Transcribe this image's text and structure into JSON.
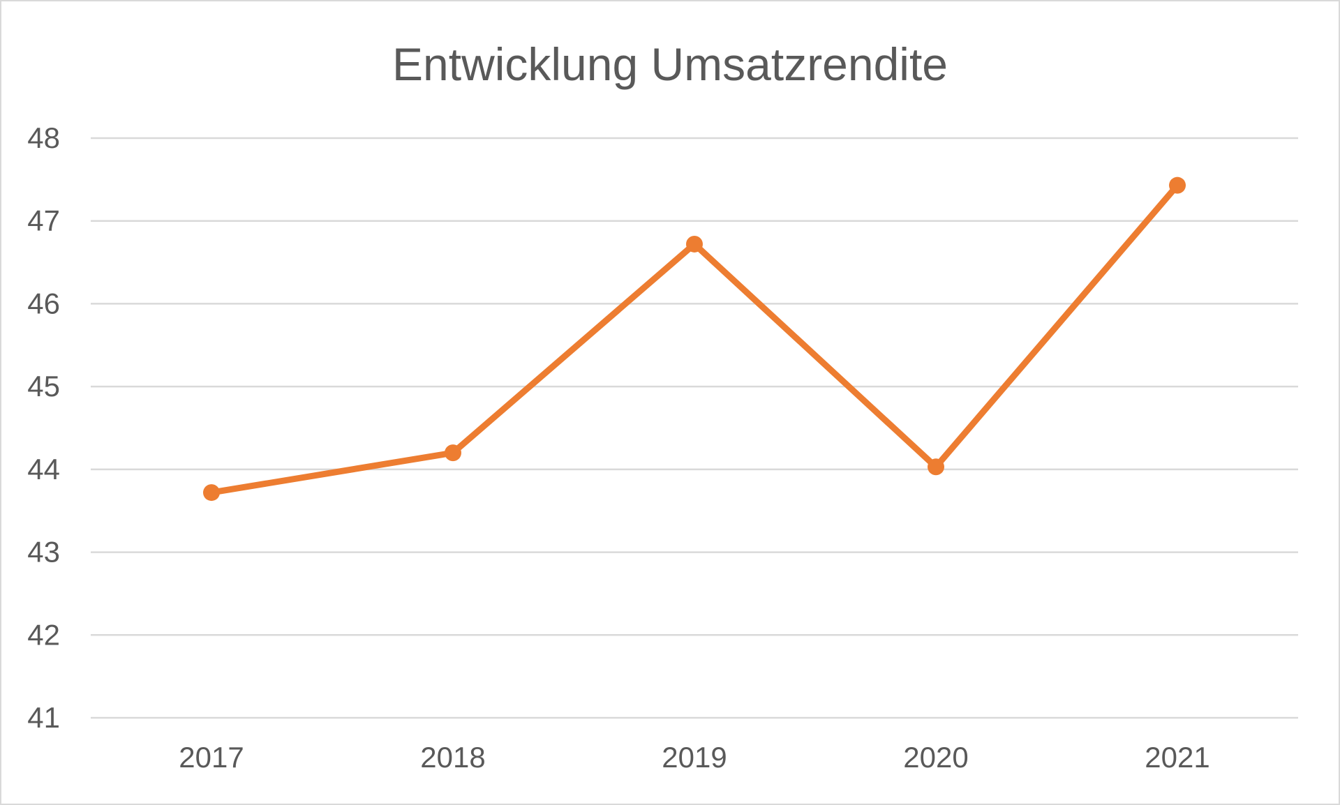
{
  "chart_data": {
    "type": "line",
    "title": "Entwicklung Umsatzrendite",
    "xlabel": "",
    "ylabel": "",
    "categories": [
      "2017",
      "2018",
      "2019",
      "2020",
      "2021"
    ],
    "series": [
      {
        "values": [
          43.72,
          44.2,
          46.72,
          44.03,
          47.43
        ],
        "color": "#ED7D31",
        "marker": "circle"
      }
    ],
    "ylim": [
      41,
      48
    ],
    "yticks": [
      "41",
      "42",
      "43",
      "44",
      "45",
      "46",
      "47",
      "48"
    ],
    "grid": "horizontal",
    "legend": "none"
  }
}
